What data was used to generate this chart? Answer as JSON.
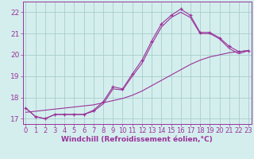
{
  "hours": [
    0,
    1,
    2,
    3,
    4,
    5,
    6,
    7,
    8,
    9,
    10,
    11,
    12,
    13,
    14,
    15,
    16,
    17,
    18,
    19,
    20,
    21,
    22,
    23
  ],
  "windchill": [
    17.5,
    17.1,
    17.0,
    17.2,
    17.2,
    17.2,
    17.2,
    17.4,
    17.8,
    18.5,
    18.4,
    19.1,
    19.75,
    20.65,
    21.45,
    21.85,
    22.15,
    21.85,
    21.05,
    21.05,
    20.8,
    20.4,
    20.15,
    20.2
  ],
  "temp_smooth": [
    17.5,
    17.1,
    17.0,
    17.2,
    17.2,
    17.2,
    17.2,
    17.35,
    17.7,
    18.4,
    18.35,
    19.0,
    19.6,
    20.5,
    21.3,
    21.75,
    22.0,
    21.75,
    21.0,
    21.0,
    20.75,
    20.3,
    20.05,
    20.2
  ],
  "straight_line": [
    17.3,
    17.35,
    17.4,
    17.45,
    17.5,
    17.55,
    17.6,
    17.65,
    17.75,
    17.85,
    17.95,
    18.1,
    18.3,
    18.55,
    18.8,
    19.05,
    19.3,
    19.55,
    19.75,
    19.9,
    20.0,
    20.1,
    20.15,
    20.2
  ],
  "line_color": "#993399",
  "bg_color": "#d4eeee",
  "grid_color": "#aacccc",
  "ylim": [
    16.75,
    22.5
  ],
  "yticks": [
    17,
    18,
    19,
    20,
    21,
    22
  ],
  "xlabel": "Windchill (Refroidissement éolien,°C)",
  "xlabel_fontsize": 6.5,
  "tick_fontsize": 6.5
}
